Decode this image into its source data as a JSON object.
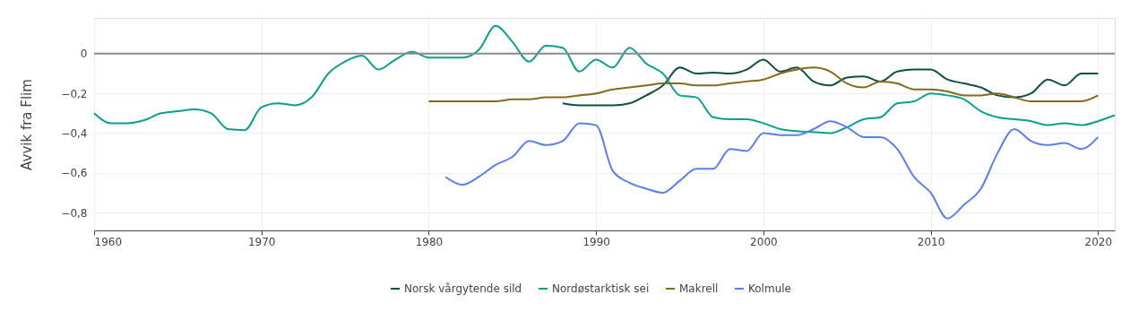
{
  "chart_data": {
    "type": "line",
    "ylabel": "Avvik fra Flim",
    "xlim": [
      1960,
      2021
    ],
    "xticks": [
      1960,
      1970,
      1980,
      1990,
      2000,
      2010,
      2020
    ],
    "ylim": [
      -0.89,
      0.18
    ],
    "yticks": [
      {
        "value": -0.8,
        "label": "−0,8"
      },
      {
        "value": -0.6,
        "label": "−0,6"
      },
      {
        "value": -0.4,
        "label": "−0,4"
      },
      {
        "value": -0.2,
        "label": "−0,2"
      },
      {
        "value": 0,
        "label": "0"
      }
    ],
    "grid": true,
    "legend": "bottom",
    "marker": "none",
    "line_style": "solid",
    "ref_lines": [
      {
        "axis": "y",
        "value": 0,
        "color": "#8c8c8c"
      }
    ],
    "series": [
      {
        "name": "Norsk vårgytende sild",
        "color": "#0b4f45",
        "x": [
          1988,
          1989,
          1990,
          1991,
          1992,
          1993,
          1994,
          1995,
          1996,
          1997,
          1998,
          1999,
          2000,
          2001,
          2002,
          2003,
          2004,
          2005,
          2006,
          2007,
          2008,
          2009,
          2010,
          2011,
          2012,
          2013,
          2014,
          2015,
          2016,
          2017,
          2018,
          2019,
          2020
        ],
        "values": [
          -0.25,
          -0.26,
          -0.26,
          -0.26,
          -0.25,
          -0.21,
          -0.16,
          -0.07,
          -0.1,
          -0.095,
          -0.1,
          -0.08,
          -0.03,
          -0.09,
          -0.07,
          -0.14,
          -0.16,
          -0.12,
          -0.115,
          -0.14,
          -0.09,
          -0.08,
          -0.08,
          -0.13,
          -0.15,
          -0.17,
          -0.21,
          -0.22,
          -0.2,
          -0.13,
          -0.16,
          -0.1,
          -0.1
        ]
      },
      {
        "name": "Nordøstarktisk sei",
        "color": "#0d9e91",
        "x": [
          1960,
          1961,
          1962,
          1963,
          1964,
          1965,
          1966,
          1967,
          1968,
          1969,
          1970,
          1971,
          1972,
          1973,
          1974,
          1975,
          1976,
          1977,
          1978,
          1979,
          1980,
          1981,
          1982,
          1983,
          1984,
          1985,
          1986,
          1987,
          1988,
          1989,
          1990,
          1991,
          1992,
          1993,
          1994,
          1995,
          1996,
          1997,
          1998,
          1999,
          2000,
          2001,
          2002,
          2003,
          2004,
          2005,
          2006,
          2007,
          2008,
          2009,
          2010,
          2011,
          2012,
          2013,
          2014,
          2015,
          2016,
          2017,
          2018,
          2019,
          2020,
          2021
        ],
        "values": [
          -0.3,
          -0.35,
          -0.35,
          -0.335,
          -0.3,
          -0.29,
          -0.28,
          -0.3,
          -0.38,
          -0.385,
          -0.27,
          -0.25,
          -0.26,
          -0.22,
          -0.1,
          -0.04,
          -0.01,
          -0.08,
          -0.03,
          0.01,
          -0.02,
          -0.02,
          -0.02,
          0.02,
          0.14,
          0.06,
          -0.04,
          0.04,
          0.03,
          -0.09,
          -0.03,
          -0.07,
          0.03,
          -0.05,
          -0.1,
          -0.21,
          -0.22,
          -0.32,
          -0.33,
          -0.33,
          -0.35,
          -0.38,
          -0.39,
          -0.395,
          -0.4,
          -0.37,
          -0.33,
          -0.32,
          -0.25,
          -0.24,
          -0.2,
          -0.21,
          -0.23,
          -0.29,
          -0.32,
          -0.33,
          -0.34,
          -0.36,
          -0.35,
          -0.36,
          -0.34,
          -0.31
        ]
      },
      {
        "name": "Makrell",
        "color": "#86691b",
        "x": [
          1980,
          1981,
          1982,
          1983,
          1984,
          1985,
          1986,
          1987,
          1988,
          1989,
          1990,
          1991,
          1992,
          1993,
          1994,
          1995,
          1996,
          1997,
          1998,
          1999,
          2000,
          2001,
          2002,
          2003,
          2004,
          2005,
          2006,
          2007,
          2008,
          2009,
          2010,
          2011,
          2012,
          2013,
          2014,
          2015,
          2016,
          2017,
          2018,
          2019,
          2020
        ],
        "values": [
          -0.24,
          -0.24,
          -0.24,
          -0.24,
          -0.24,
          -0.23,
          -0.23,
          -0.22,
          -0.22,
          -0.21,
          -0.2,
          -0.18,
          -0.17,
          -0.16,
          -0.15,
          -0.15,
          -0.16,
          -0.16,
          -0.15,
          -0.14,
          -0.13,
          -0.1,
          -0.08,
          -0.07,
          -0.09,
          -0.15,
          -0.17,
          -0.14,
          -0.15,
          -0.18,
          -0.18,
          -0.19,
          -0.21,
          -0.21,
          -0.2,
          -0.22,
          -0.24,
          -0.24,
          -0.24,
          -0.24,
          -0.21
        ]
      },
      {
        "name": "Kolmule",
        "color": "#5b7fe8",
        "x": [
          1981,
          1982,
          1983,
          1984,
          1985,
          1986,
          1987,
          1988,
          1989,
          1990,
          1991,
          1992,
          1993,
          1994,
          1995,
          1996,
          1997,
          1998,
          1999,
          2000,
          2001,
          2002,
          2003,
          2004,
          2005,
          2006,
          2007,
          2008,
          2009,
          2010,
          2011,
          2012,
          2013,
          2014,
          2015,
          2016,
          2017,
          2018,
          2019,
          2020
        ],
        "values": [
          -0.62,
          -0.66,
          -0.62,
          -0.56,
          -0.52,
          -0.44,
          -0.46,
          -0.44,
          -0.35,
          -0.36,
          -0.59,
          -0.65,
          -0.68,
          -0.7,
          -0.64,
          -0.58,
          -0.58,
          -0.48,
          -0.49,
          -0.4,
          -0.41,
          -0.41,
          -0.38,
          -0.34,
          -0.37,
          -0.42,
          -0.42,
          -0.48,
          -0.62,
          -0.7,
          -0.83,
          -0.76,
          -0.68,
          -0.5,
          -0.38,
          -0.44,
          -0.46,
          -0.45,
          -0.48,
          -0.42
        ]
      }
    ]
  }
}
